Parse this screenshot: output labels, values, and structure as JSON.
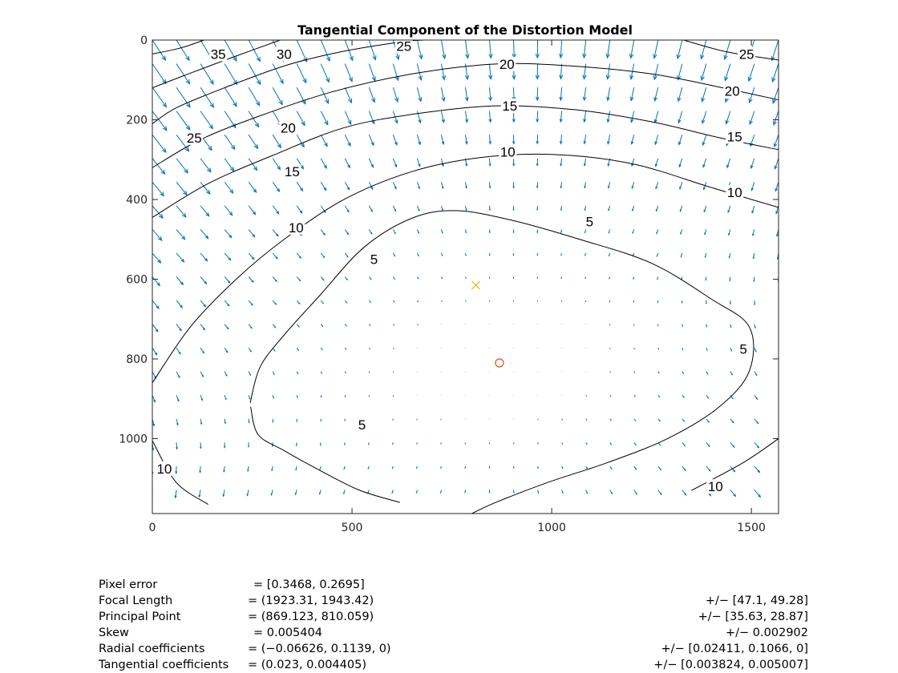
{
  "chart_data": {
    "type": "contour",
    "title": "Tangential Component of the Distortion Model",
    "xlabel": "",
    "ylabel": "",
    "xlim": [
      0,
      1568
    ],
    "ylim": [
      0,
      1188
    ],
    "y_reversed": true,
    "x_ticks": [
      0,
      500,
      1000,
      1500
    ],
    "y_ticks": [
      0,
      200,
      400,
      600,
      800,
      1000
    ],
    "grid": false,
    "box": true,
    "contour_color": "#000000",
    "quiver_color": "#0072BD",
    "contour_levels": [
      {
        "level": 5,
        "label_points": [
          [
            555,
            550
          ],
          [
            1095,
            455
          ],
          [
            1480,
            775
          ],
          [
            525,
            965
          ]
        ],
        "path": [
          [
            245,
            910
          ],
          [
            270,
            820
          ],
          [
            330,
            740
          ],
          [
            420,
            640
          ],
          [
            530,
            520
          ],
          [
            650,
            447
          ],
          [
            760,
            428
          ],
          [
            900,
            452
          ],
          [
            1070,
            500
          ],
          [
            1250,
            560
          ],
          [
            1400,
            650
          ],
          [
            1495,
            720
          ],
          [
            1495,
            830
          ],
          [
            1420,
            920
          ],
          [
            1290,
            1000
          ],
          [
            1140,
            1060
          ],
          [
            990,
            1110
          ],
          [
            860,
            1160
          ],
          [
            800,
            1188
          ]
        ]
      },
      {
        "level": 5,
        "path": [
          [
            246,
            920
          ],
          [
            265,
            990
          ],
          [
            330,
            1030
          ],
          [
            420,
            1080
          ],
          [
            520,
            1130
          ],
          [
            620,
            1160
          ]
        ]
      },
      {
        "level": 10,
        "label_points": [
          [
            360,
            470
          ],
          [
            890,
            280
          ],
          [
            1458,
            382
          ],
          [
            30,
            1075
          ],
          [
            1410,
            1120
          ]
        ],
        "path": [
          [
            0,
            860
          ],
          [
            95,
            720
          ],
          [
            210,
            600
          ],
          [
            330,
            500
          ],
          [
            480,
            400
          ],
          [
            650,
            330
          ],
          [
            820,
            295
          ],
          [
            1000,
            287
          ],
          [
            1200,
            310
          ],
          [
            1400,
            370
          ],
          [
            1568,
            420
          ]
        ]
      },
      {
        "level": 10,
        "path": [
          [
            0,
            1005
          ],
          [
            60,
            1110
          ],
          [
            140,
            1165
          ]
        ]
      },
      {
        "level": 10,
        "path": [
          [
            1568,
            1000
          ],
          [
            1480,
            1060
          ],
          [
            1350,
            1130
          ]
        ]
      },
      {
        "level": 15,
        "label_points": [
          [
            350,
            330
          ],
          [
            895,
            165
          ],
          [
            1458,
            242
          ]
        ],
        "path": [
          [
            0,
            445
          ],
          [
            140,
            360
          ],
          [
            300,
            290
          ],
          [
            480,
            220
          ],
          [
            660,
            185
          ],
          [
            860,
            165
          ],
          [
            1060,
            175
          ],
          [
            1250,
            205
          ],
          [
            1420,
            245
          ],
          [
            1568,
            275
          ]
        ]
      },
      {
        "level": 20,
        "label_points": [
          [
            340,
            220
          ],
          [
            888,
            60
          ],
          [
            1452,
            128
          ]
        ],
        "path": [
          [
            0,
            320
          ],
          [
            120,
            250
          ],
          [
            270,
            190
          ],
          [
            450,
            130
          ],
          [
            650,
            85
          ],
          [
            860,
            60
          ],
          [
            1050,
            65
          ],
          [
            1250,
            85
          ],
          [
            1420,
            118
          ],
          [
            1568,
            150
          ]
        ]
      },
      {
        "level": 25,
        "label_points": [
          [
            105,
            245
          ],
          [
            630,
            15
          ],
          [
            1488,
            35
          ]
        ],
        "path": [
          [
            0,
            210
          ],
          [
            60,
            170
          ],
          [
            180,
            120
          ],
          [
            330,
            65
          ],
          [
            470,
            30
          ],
          [
            620,
            5
          ],
          [
            680,
            0
          ]
        ]
      },
      {
        "level": 25,
        "path": [
          [
            1330,
            0
          ],
          [
            1440,
            30
          ],
          [
            1568,
            50
          ]
        ]
      },
      {
        "level": 30,
        "label_points": [
          [
            330,
            35
          ]
        ],
        "path": [
          [
            0,
            120
          ],
          [
            90,
            85
          ],
          [
            210,
            40
          ],
          [
            320,
            0
          ]
        ]
      },
      {
        "level": 35,
        "label_points": [
          [
            165,
            35
          ]
        ],
        "path": [
          [
            0,
            35
          ],
          [
            70,
            20
          ],
          [
            130,
            0
          ]
        ]
      }
    ],
    "quiver_grid": {
      "x_start": 0,
      "x_step": 60.3,
      "x_count": 27,
      "y_start": 0,
      "y_step": 59.4,
      "y_count": 21
    },
    "principal_point": {
      "x": 869.123,
      "y": 810.059,
      "marker": "o",
      "color": "#D95319"
    },
    "image_center": {
      "x": 810,
      "y": 615,
      "marker": "x",
      "color": "#EDB120"
    }
  },
  "stats": [
    {
      "label": "Pixel error",
      "value": "= [0.3468, 0.2695]",
      "error": ""
    },
    {
      "label": "Focal Length",
      "value": "= (1923.31, 1943.42)",
      "error": "+/− [47.1, 49.28]"
    },
    {
      "label": "Principal Point",
      "value": "= (869.123, 810.059)",
      "error": "+/− [35.63, 28.87]"
    },
    {
      "label": "Skew",
      "value": "= 0.005404",
      "error": "+/− 0.002902"
    },
    {
      "label": "Radial coefficients",
      "value": "= (−0.06626, 0.1139, 0)",
      "error": "+/− [0.02411, 0.1066, 0]"
    },
    {
      "label": "Tangential coefficients",
      "value": "= (0.023, 0.004405)",
      "error": "+/− [0.003824, 0.005007]"
    }
  ]
}
